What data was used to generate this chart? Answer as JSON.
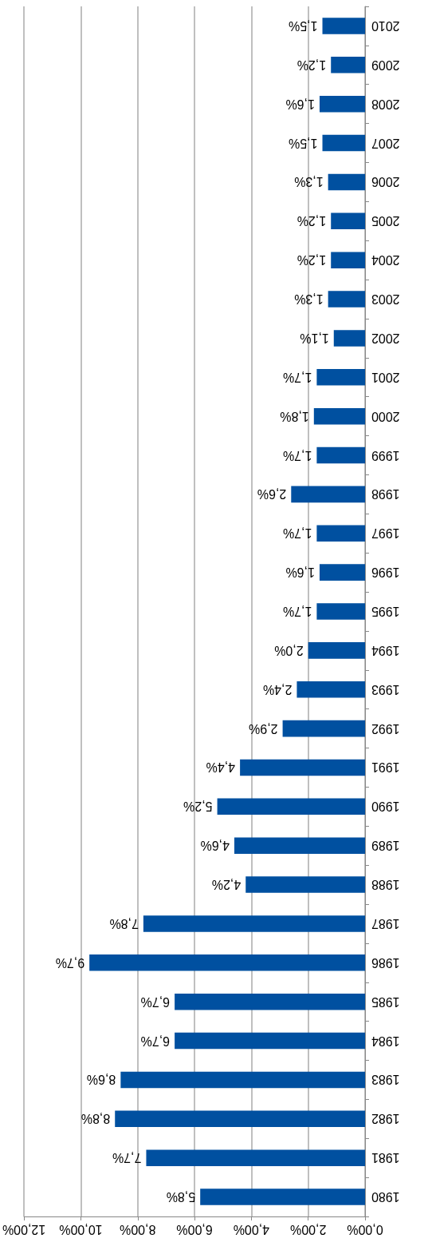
{
  "chart_data": {
    "type": "bar",
    "orientation": "horizontal",
    "categories": [
      "2010",
      "2009",
      "2008",
      "2007",
      "2006",
      "2005",
      "2004",
      "2003",
      "2002",
      "2001",
      "2000",
      "1999",
      "1998",
      "1997",
      "1996",
      "1995",
      "1994",
      "1993",
      "1992",
      "1991",
      "1990",
      "1989",
      "1988",
      "1987",
      "1986",
      "1985",
      "1984",
      "1983",
      "1982",
      "1981",
      "1980"
    ],
    "values": [
      1.5,
      1.2,
      1.6,
      1.5,
      1.3,
      1.2,
      1.2,
      1.3,
      1.1,
      1.7,
      1.8,
      1.7,
      2.6,
      1.7,
      1.6,
      1.7,
      2.0,
      2.4,
      2.9,
      4.4,
      5.2,
      4.6,
      4.2,
      7.8,
      9.7,
      6.7,
      6.7,
      8.6,
      8.8,
      7.7,
      5.8
    ],
    "value_labels": [
      "1,5%",
      "1,2%",
      "1,6%",
      "1,5%",
      "1,3%",
      "1,2%",
      "1,2%",
      "1,3%",
      "1,1%",
      "1,7%",
      "1,8%",
      "1,7%",
      "2,6%",
      "1,7%",
      "1,6%",
      "1,7%",
      "2,0%",
      "2,4%",
      "2,9%",
      "4,4%",
      "5,2%",
      "4,6%",
      "4,2%",
      "7,8%",
      "9,7%",
      "6,7%",
      "6,7%",
      "8,6%",
      "8,8%",
      "7,7%",
      "5,8%"
    ],
    "color": "#0050a0",
    "xlim": [
      12,
      0
    ],
    "xticks": [
      {
        "value": 12,
        "label": "12,00%"
      },
      {
        "value": 10,
        "label": "10,00%"
      },
      {
        "value": 8,
        "label": "8,00%"
      },
      {
        "value": 6,
        "label": "6,00%"
      },
      {
        "value": 4,
        "label": "4,00%"
      },
      {
        "value": 2,
        "label": "2,00%"
      },
      {
        "value": 0,
        "label": "0,00%"
      }
    ],
    "grid": "x"
  }
}
